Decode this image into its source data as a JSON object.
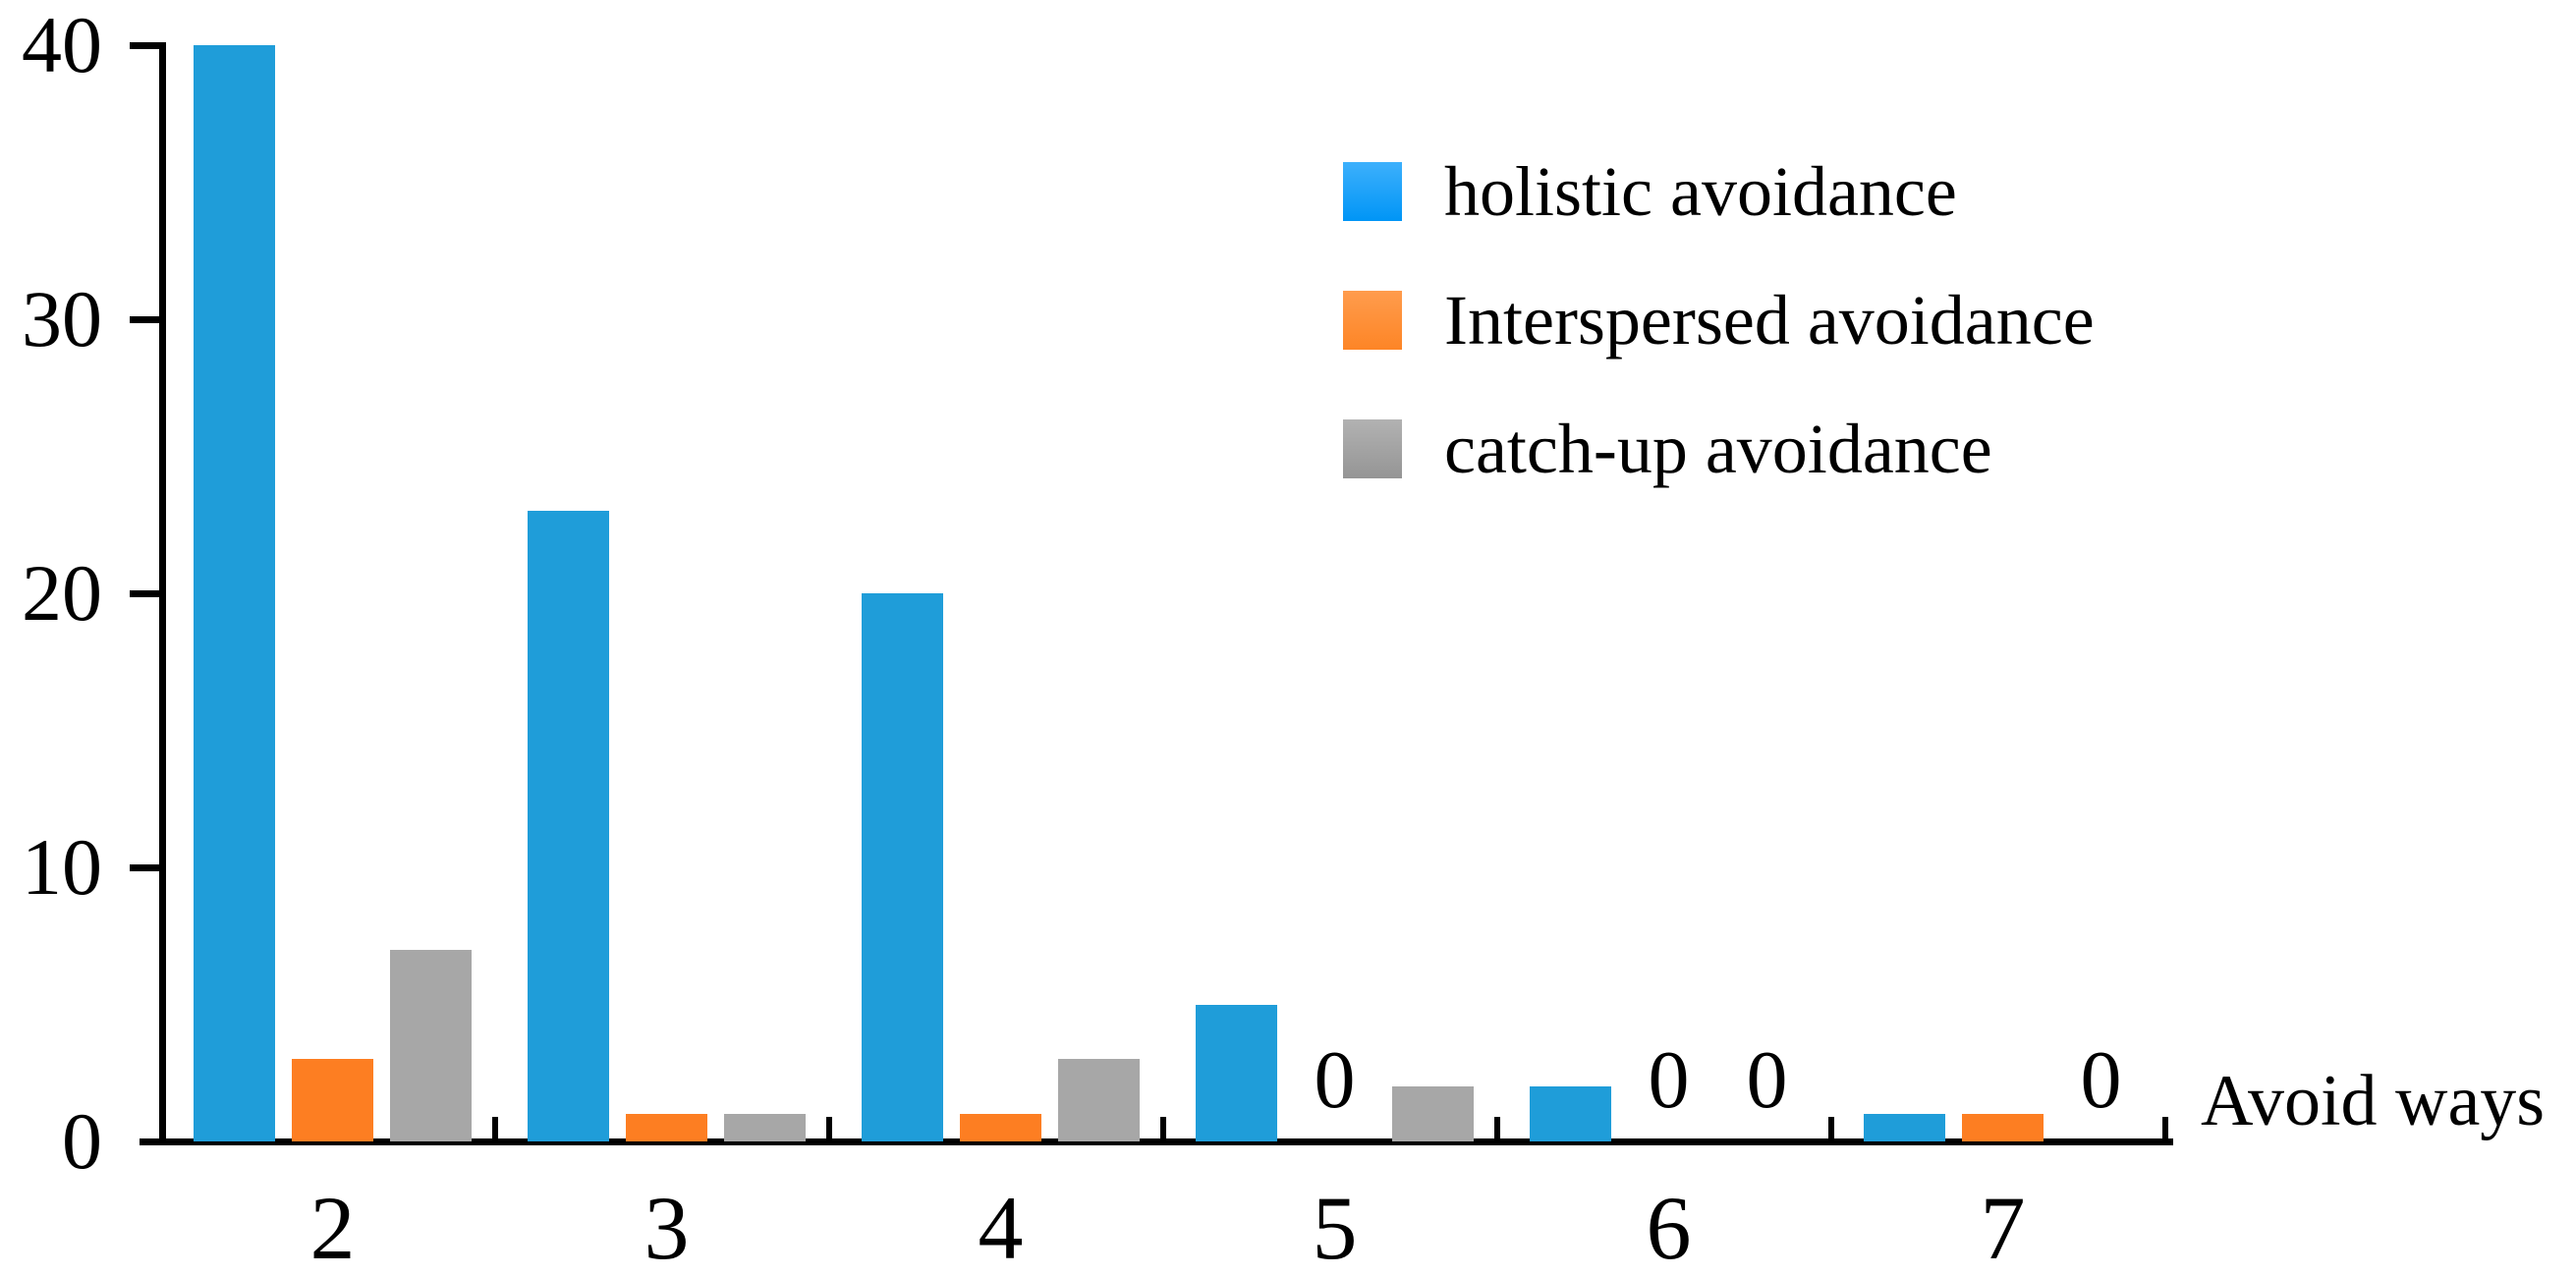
{
  "chart_data": {
    "type": "bar",
    "title": "",
    "xlabel": "Avoid ways",
    "ylabel": "",
    "categories": [
      "2",
      "3",
      "4",
      "5",
      "6",
      "7"
    ],
    "series": [
      {
        "name": "holistic avoidance",
        "color": "#1f9dd9",
        "legend_gradient": [
          "#3db0fc",
          "#0095f6"
        ],
        "values": [
          40,
          23,
          20,
          5,
          2,
          1
        ]
      },
      {
        "name": "Interspersed avoidance",
        "color": "#fd7e22",
        "legend_gradient": [
          "#ff9c4d",
          "#fd8526"
        ],
        "values": [
          3,
          1,
          1,
          0,
          0,
          1
        ]
      },
      {
        "name": "catch-up avoidance",
        "color": "#a7a7a7",
        "legend_gradient": [
          "#b2b2b2",
          "#959595"
        ],
        "values": [
          7,
          1,
          3,
          2,
          0,
          0
        ]
      }
    ],
    "y_ticks": [
      0,
      10,
      20,
      30,
      40
    ],
    "ylim": [
      0,
      40
    ],
    "zero_label": "0",
    "grid": false,
    "legend_position": "upper right",
    "axis_color": "#000000",
    "text_color": "#000000"
  }
}
